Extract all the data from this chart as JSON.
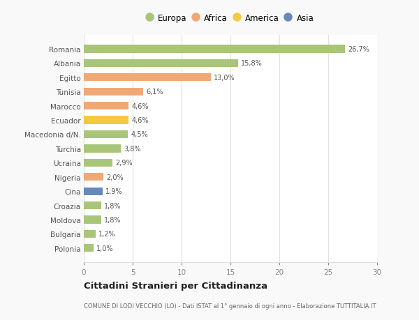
{
  "categories": [
    "Romania",
    "Albania",
    "Egitto",
    "Tunisia",
    "Marocco",
    "Ecuador",
    "Macedonia d/N.",
    "Turchia",
    "Ucraina",
    "Nigeria",
    "Cina",
    "Croazia",
    "Moldova",
    "Bulgaria",
    "Polonia"
  ],
  "values": [
    26.7,
    15.8,
    13.0,
    6.1,
    4.6,
    4.6,
    4.5,
    3.8,
    2.9,
    2.0,
    1.9,
    1.8,
    1.8,
    1.2,
    1.0
  ],
  "labels": [
    "26,7%",
    "15,8%",
    "13,0%",
    "6,1%",
    "4,6%",
    "4,6%",
    "4,5%",
    "3,8%",
    "2,9%",
    "2,0%",
    "1,9%",
    "1,8%",
    "1,8%",
    "1,2%",
    "1,0%"
  ],
  "colors": [
    "#a8c57a",
    "#a8c57a",
    "#f0a875",
    "#f0a875",
    "#f0a875",
    "#f5c842",
    "#a8c57a",
    "#a8c57a",
    "#a8c57a",
    "#f0a875",
    "#6688bb",
    "#a8c57a",
    "#a8c57a",
    "#a8c57a",
    "#a8c57a"
  ],
  "legend": [
    {
      "label": "Europa",
      "color": "#a8c57a"
    },
    {
      "label": "Africa",
      "color": "#f0a875"
    },
    {
      "label": "America",
      "color": "#f5c842"
    },
    {
      "label": "Asia",
      "color": "#6688bb"
    }
  ],
  "xlim": [
    0,
    30
  ],
  "xticks": [
    0,
    5,
    10,
    15,
    20,
    25,
    30
  ],
  "title": "Cittadini Stranieri per Cittadinanza",
  "subtitle": "COMUNE DI LODI VECCHIO (LO) - Dati ISTAT al 1° gennaio di ogni anno - Elaborazione TUTTITALIA.IT",
  "background_color": "#f9f9f9",
  "bar_background": "#ffffff",
  "grid_color": "#e0e0e0"
}
